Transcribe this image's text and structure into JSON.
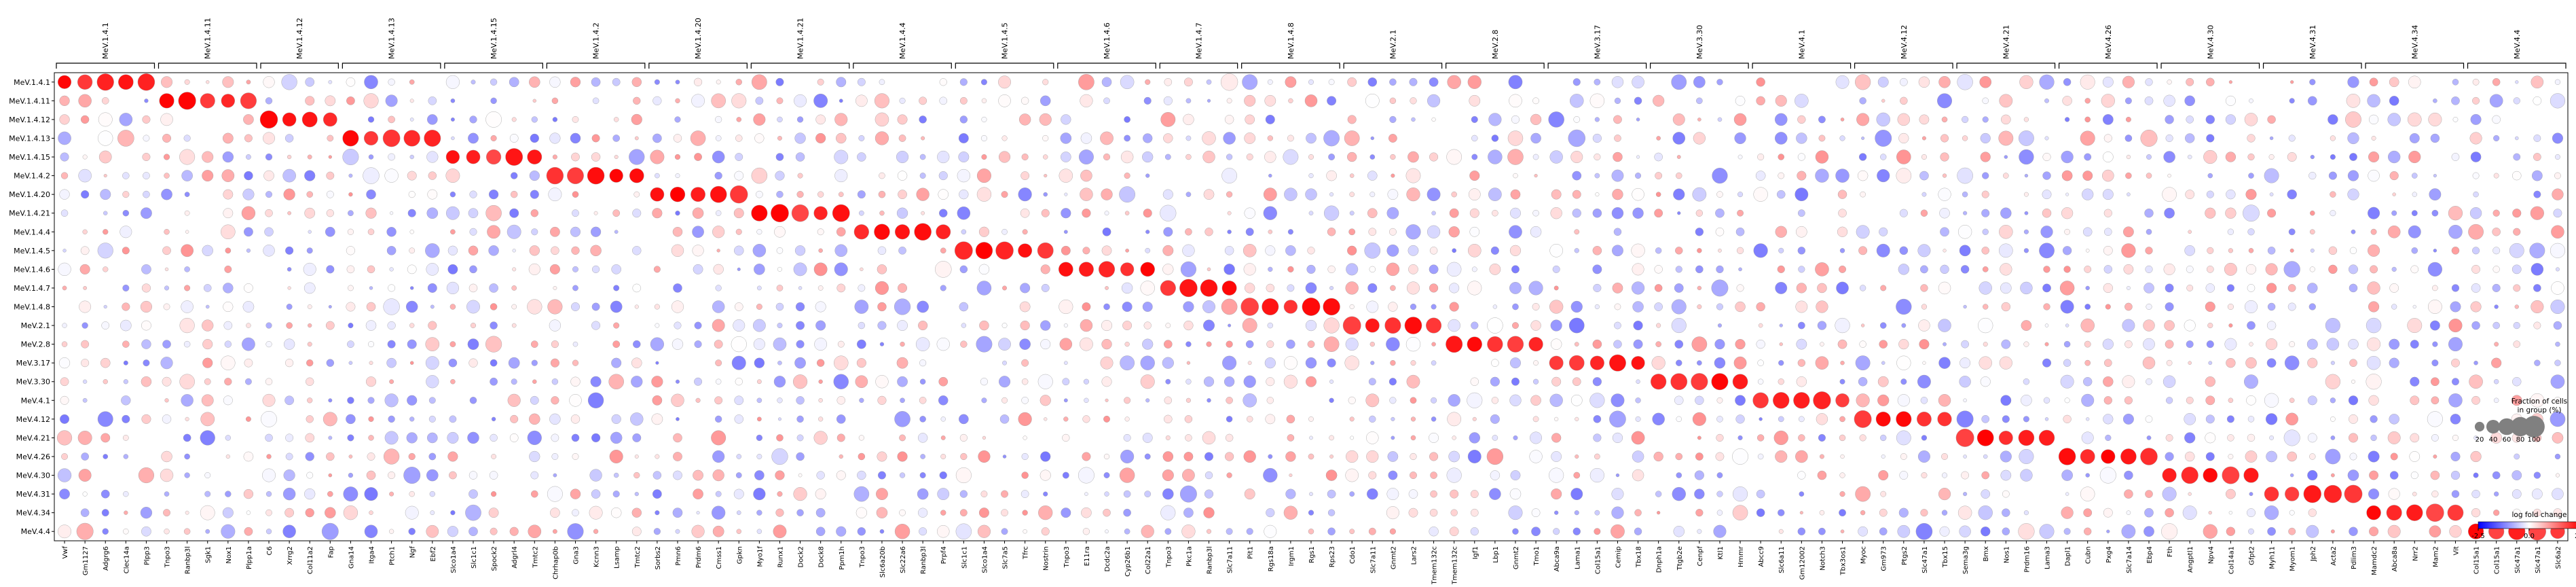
{
  "chart_data": {
    "type": "dotplot",
    "title": "",
    "rows": [
      "MeV.1.4.1",
      "MeV.1.4.11",
      "MeV.1.4.12",
      "MeV.1.4.13",
      "MeV.1.4.15",
      "MeV.1.4.2",
      "MeV.1.4.20",
      "MeV.1.4.21",
      "MeV.1.4.4",
      "MeV.1.4.5",
      "MeV.1.4.6",
      "MeV.1.4.7",
      "MeV.1.4.8",
      "MeV.2.1",
      "MeV.2.8",
      "MeV.3.17",
      "MeV.3.30",
      "MeV.4.1",
      "MeV.4.12",
      "MeV.4.21",
      "MeV.4.26",
      "MeV.4.30",
      "MeV.4.31",
      "MeV.4.34",
      "MeV.4.4"
    ],
    "groups": [
      {
        "label": "MeV.1.4.1",
        "genes": [
          "Vwf",
          "Gm1127",
          "Adgrg6",
          "Clec14a",
          "Plpp3"
        ]
      },
      {
        "label": "MeV.1.4.11",
        "genes": [
          "Tnpo3",
          "Ranbp3l",
          "Sgk1",
          "Nox1",
          "Plpp1a"
        ]
      },
      {
        "label": "MeV.1.4.12",
        "genes": [
          "C6",
          "Xrrg2",
          "Col11a2",
          "Fap"
        ]
      },
      {
        "label": "MeV.1.4.13",
        "genes": [
          "Gna14",
          "Itga4",
          "Ptch1",
          "Ngf",
          "Ebf2"
        ]
      },
      {
        "label": "MeV.1.4.15",
        "genes": [
          "Slco1a4",
          "Slc1c1",
          "Spock2",
          "Adgrl4",
          "Tmtc2"
        ]
      },
      {
        "label": "MeV.1.4.2",
        "genes": [
          "Chrhap0b",
          "Gna3",
          "Kcnn3",
          "Lsamp",
          "Tmtc2"
        ]
      },
      {
        "label": "MeV.1.4.20",
        "genes": [
          "Sorbs2",
          "Pmn6",
          "Prdm6",
          "Cmss1",
          "Gpkn"
        ]
      },
      {
        "label": "MeV.1.4.21",
        "genes": [
          "Myo1f",
          "Runx1",
          "Dock2",
          "Dock8",
          "Ppm1h"
        ]
      },
      {
        "label": "MeV.1.4.4",
        "genes": [
          "Tnpo3",
          "Slc6a20b",
          "Slc22a6",
          "Ranbp3l",
          "Prpf4"
        ]
      },
      {
        "label": "MeV.1.4.5",
        "genes": [
          "Slc1c1",
          "Slco1a4",
          "Slc7a5",
          "Tfrc",
          "Nostrin"
        ]
      },
      {
        "label": "MeV.1.4.6",
        "genes": [
          "Tnpo3",
          "E11ra",
          "Dcdc2a",
          "Cyp26b1",
          "Col22a1"
        ]
      },
      {
        "label": "MeV.1.4.7",
        "genes": [
          "Tnpo3",
          "Pkc1a",
          "Ranbp3l",
          "Slc7a11"
        ]
      },
      {
        "label": "MeV.1.4.8",
        "genes": [
          "Pit1",
          "Rgs18a",
          "Irgm1",
          "Rgs1",
          "Rps23"
        ]
      },
      {
        "label": "MeV.2.1",
        "genes": [
          "Cdo1",
          "Slc7a11",
          "Gnmt2",
          "Lars2",
          "Tmem132c"
        ]
      },
      {
        "label": "MeV.2.8",
        "genes": [
          "Tmem132c",
          "Igf1",
          "Lbp1",
          "Gnmt2",
          "Tmo1"
        ]
      },
      {
        "label": "MeV.3.17",
        "genes": [
          "Abca9a",
          "Lama1",
          "Col15a1",
          "Cemip",
          "Tbx18"
        ]
      },
      {
        "label": "MeV.3.30",
        "genes": [
          "Dnph1a",
          "Ttgb2e",
          "Cenpf",
          "Ktl1",
          "Hmmr"
        ]
      },
      {
        "label": "MeV.4.1",
        "genes": [
          "Abcc9",
          "Slc6a11",
          "Gm12002",
          "Notch3",
          "Tbx3os1"
        ]
      },
      {
        "label": "MeV.4.12",
        "genes": [
          "Myoc",
          "Gm973",
          "Ptgs2",
          "Slc47a1",
          "Tbx15"
        ]
      },
      {
        "label": "MeV.4.21",
        "genes": [
          "Sema3g",
          "Bmx",
          "Nos1",
          "Prdm16",
          "Lama3"
        ]
      },
      {
        "label": "MeV.4.26",
        "genes": [
          "Dapl1",
          "Cubn",
          "Pxg4",
          "Slc7a14",
          "Ebp4"
        ]
      },
      {
        "label": "MeV.4.30",
        "genes": [
          "Fth",
          "Angptl1",
          "Npv4",
          "Col14a1",
          "Gfpt2"
        ]
      },
      {
        "label": "MeV.4.31",
        "genes": [
          "Myh11",
          "Myom1",
          "Jph2",
          "Acta2",
          "Pdlim3"
        ]
      },
      {
        "label": "MeV.4.34",
        "genes": [
          "Mamdc2",
          "Abca8a",
          "Nrr2",
          "Mam2",
          "Vit"
        ]
      },
      {
        "label": "MeV.4.4",
        "genes": [
          "Col15a1",
          "Col15a1",
          "Slc47a1",
          "Slc47a1",
          "Slc6a2"
        ]
      }
    ],
    "color_scale": {
      "title": "log fold change",
      "min": -2.5,
      "max": 2.5,
      "ticks": [
        -2.5,
        0.0,
        2.5
      ],
      "low_color": "#0000ff",
      "mid_color": "#ffffff",
      "high_color": "#ff0000"
    },
    "size_legend": {
      "title": "Fraction of cells in group (%)",
      "values": [
        20,
        40,
        60,
        80,
        100
      ]
    }
  }
}
